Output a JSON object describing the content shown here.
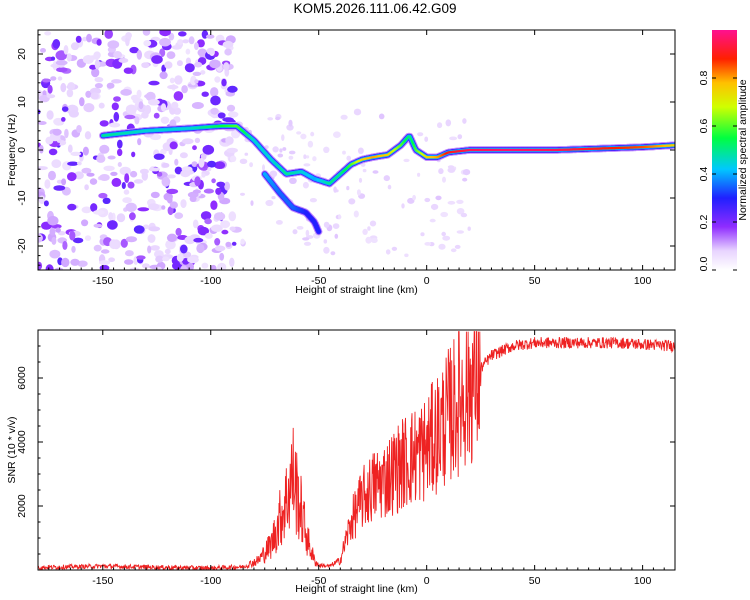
{
  "title": "KOM5.2026.111.06.42.G09",
  "colors": {
    "snr_line": "#ee2222",
    "frame": "#000000"
  },
  "chart_data": [
    {
      "type": "heatmap",
      "xlabel": "Height of straight line (km)",
      "ylabel": "Frequency (Hz)",
      "xlim": [
        -180,
        115
      ],
      "ylim": [
        -25,
        25
      ],
      "x_ticks": [
        -150,
        -100,
        -50,
        0,
        50,
        100
      ],
      "y_ticks": [
        -20,
        -10,
        0,
        10,
        20
      ],
      "colorbar": {
        "label": "Normalized spectral amplitude",
        "range": [
          0,
          1
        ],
        "ticks": [
          "0.0",
          "0.2",
          "0.4",
          "0.6",
          "0.8"
        ]
      },
      "ridge": {
        "x": [
          -150,
          -130,
          -110,
          -95,
          -88,
          -80,
          -72,
          -65,
          -58,
          -52,
          -45,
          -40,
          -35,
          -30,
          -25,
          -18,
          -12,
          -8,
          -5,
          0,
          5,
          10,
          20,
          40,
          60,
          80,
          100,
          115
        ],
        "frequency": [
          3,
          4,
          4.5,
          5,
          5,
          2,
          -2,
          -5,
          -4.5,
          -6,
          -7,
          -5,
          -3,
          -2,
          -1.5,
          -1,
          1,
          3,
          0,
          -1.5,
          -1.5,
          -0.5,
          0,
          0,
          0,
          0.3,
          0.6,
          1
        ],
        "amplitude": [
          0.5,
          0.45,
          0.45,
          0.55,
          0.6,
          0.45,
          0.45,
          0.5,
          0.45,
          0.4,
          0.5,
          0.5,
          0.6,
          0.75,
          0.8,
          0.75,
          0.6,
          0.5,
          0.6,
          0.75,
          0.8,
          0.9,
          0.95,
          0.97,
          0.95,
          0.9,
          0.85,
          0.75
        ]
      },
      "branch": {
        "x": [
          -75,
          -68,
          -62,
          -56,
          -52,
          -50
        ],
        "frequency": [
          -5,
          -9,
          -12,
          -13,
          -15,
          -17
        ],
        "amplitude": [
          0.4,
          0.35,
          0.35,
          0.3,
          0.3,
          0.3
        ]
      }
    },
    {
      "type": "line",
      "xlabel": "Height of straight line (km)",
      "ylabel": "SNR (10 * v/v)",
      "xlim": [
        -180,
        115
      ],
      "ylim": [
        0,
        7500
      ],
      "x_ticks": [
        -150,
        -100,
        -50,
        0,
        50,
        100
      ],
      "y_ticks": [
        2000,
        4000,
        6000
      ],
      "series": [
        {
          "x": [
            -180,
            -150,
            -120,
            -100,
            -85,
            -78,
            -72,
            -68,
            -65,
            -62,
            -60,
            -58,
            -55,
            -52,
            -50,
            -45,
            -40,
            -38,
            -35,
            -30,
            -25,
            -20,
            -15,
            -10,
            -5,
            0,
            5,
            10,
            15,
            20,
            25,
            30,
            40,
            50,
            60,
            70,
            80,
            90,
            100,
            115
          ],
          "y": [
            80,
            120,
            80,
            60,
            100,
            300,
            800,
            1600,
            2200,
            3000,
            2400,
            1800,
            900,
            300,
            150,
            120,
            300,
            800,
            1500,
            2200,
            2600,
            2800,
            3100,
            3400,
            3600,
            3800,
            4300,
            4800,
            5300,
            5800,
            6300,
            6700,
            7000,
            7100,
            7100,
            7100,
            7100,
            7100,
            7050,
            7000
          ]
        }
      ]
    }
  ]
}
